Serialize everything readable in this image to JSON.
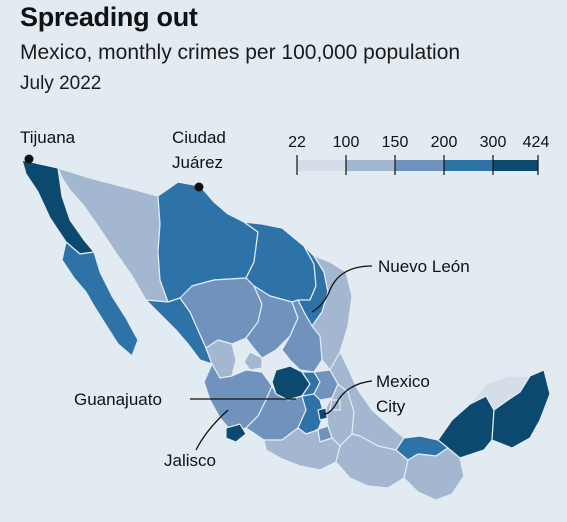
{
  "header": {
    "title": "Spreading out",
    "subtitle": "Mexico, monthly crimes per 100,000 population",
    "period": "July 2022"
  },
  "legend": {
    "thresholds": [
      "22",
      "100",
      "150",
      "200",
      "300",
      "424"
    ],
    "colors": [
      "#d5dde9",
      "#a3b7d1",
      "#6f93bd",
      "#2e73a8",
      "#0b4a6e"
    ]
  },
  "labels": {
    "tijuana": "Tijuana",
    "ciudad_juarez_line1": "Ciudad",
    "ciudad_juarez_line2": "Juárez",
    "nuevo_leon": "Nuevo León",
    "guanajuato": "Guanajuato",
    "mexico_city_line1": "Mexico",
    "mexico_city_line2": "City",
    "jalisco": "Jalisco"
  },
  "colors": {
    "background": "#e3ebf2",
    "level_1": "#d5dde9",
    "level_2": "#a3b7d1",
    "level_3": "#6f93bd",
    "level_4": "#2e73a8",
    "level_5": "#0b4a6e"
  }
}
